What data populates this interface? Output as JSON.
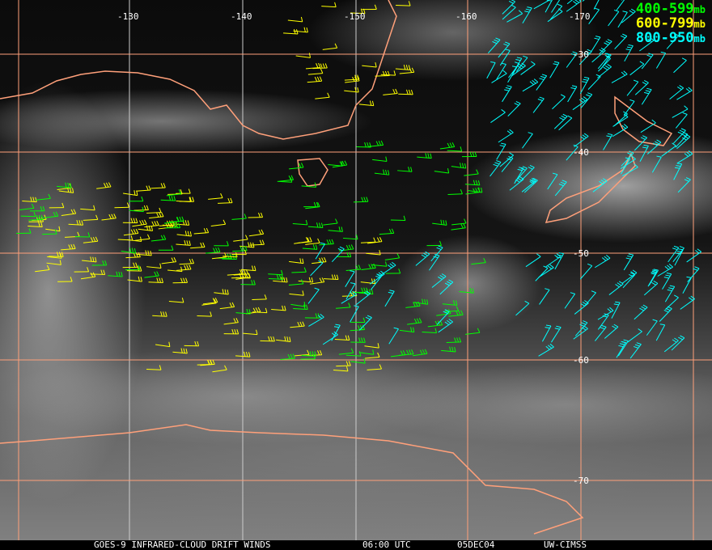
{
  "longitude_labels": [
    "-130",
    "-140",
    "-150",
    "-160",
    "-170"
  ],
  "latitude_labels": [
    "-30",
    "-40",
    "-50",
    "-60",
    "-70"
  ],
  "legend": [
    {
      "range": "400-599",
      "unit": "mb",
      "color": "#00ff00"
    },
    {
      "range": "600-799",
      "unit": "mb",
      "color": "#ffff00"
    },
    {
      "range": "800-950",
      "unit": "mb",
      "color": "#00ffff"
    }
  ],
  "footer": {
    "product": "GOES-9 INFRARED-CLOUD DRIFT WINDS",
    "time": "06:00 UTC",
    "date": "05DEC04",
    "source": "UW-CIMSS"
  },
  "colors": {
    "grid": "#ffa07a",
    "coast": "#ffa07a"
  }
}
